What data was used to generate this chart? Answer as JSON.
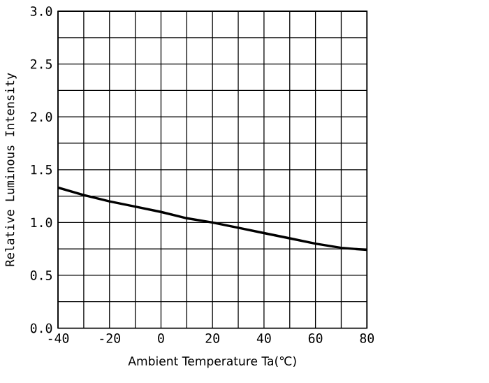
{
  "chart_data": {
    "type": "line",
    "xlabel": "Ambient Temperature      Ta(℃)",
    "ylabel": "Relative Luminous Intensity",
    "x": [
      -40,
      -30,
      -20,
      -10,
      0,
      10,
      20,
      30,
      40,
      50,
      60,
      70,
      80
    ],
    "series": [
      {
        "color": "#000000",
        "values": [
          1.33,
          1.26,
          1.2,
          1.15,
          1.1,
          1.04,
          1.0,
          0.95,
          0.9,
          0.85,
          0.8,
          0.76,
          0.74
        ]
      }
    ],
    "xlim": [
      -40,
      80
    ],
    "xticks": [
      -40,
      {
        "value": -30,
        "label": null
      },
      -20,
      {
        "value": -10,
        "label": null
      },
      0,
      {
        "value": 10,
        "label": null
      },
      20,
      {
        "value": 30,
        "label": null
      },
      40,
      {
        "value": 50,
        "label": null
      },
      60,
      {
        "value": 70,
        "label": null
      },
      80
    ],
    "ylim": [
      0,
      3
    ],
    "yticks": [
      {
        "value": 0,
        "label": "0.0"
      },
      {
        "value": 0.25,
        "label": null
      },
      0.5,
      {
        "value": 0.75,
        "label": null
      },
      {
        "value": 1,
        "label": "1.0"
      },
      {
        "value": 1.25,
        "label": null
      },
      1.5,
      {
        "value": 1.75,
        "label": null
      },
      {
        "value": 2,
        "label": "2.0"
      },
      {
        "value": 2.25,
        "label": null
      },
      2.5,
      {
        "value": 2.75,
        "label": null
      },
      {
        "value": 3,
        "label": "3.0"
      }
    ],
    "grid": true,
    "line_style": "solid",
    "marker": "none"
  }
}
